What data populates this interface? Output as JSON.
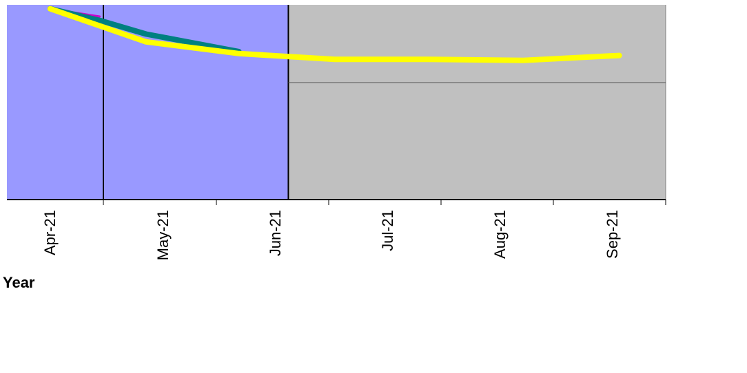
{
  "chart_data": {
    "type": "line",
    "xlabel": "Year",
    "ylabel": "",
    "categories": [
      "Apr-21",
      "May-21",
      "Jun-21",
      "Jul-21",
      "Aug-21",
      "Sep-21"
    ],
    "x_range": [
      "2021-03-01",
      "2021-09-30"
    ],
    "shaded_regions": [
      {
        "label": "",
        "start": "2021-03-01",
        "end": "2021-05-31",
        "color": "#9999ff"
      },
      {
        "label": "",
        "start": "2021-05-31",
        "end": "2021-09-30",
        "color": "#c0c0c0"
      }
    ],
    "gridlines_y": true,
    "series": [
      {
        "color": "#ffff00",
        "points": [
          {
            "x": "2021-03-15",
            "y": 0.98
          },
          {
            "x": "2021-04-15",
            "y": 0.81
          },
          {
            "x": "2021-05-15",
            "y": 0.75
          },
          {
            "x": "2021-06-15",
            "y": 0.72
          },
          {
            "x": "2021-07-15",
            "y": 0.72
          },
          {
            "x": "2021-08-15",
            "y": 0.715
          },
          {
            "x": "2021-09-15",
            "y": 0.74
          }
        ]
      },
      {
        "color": "#008080",
        "points": [
          {
            "x": "2021-03-15",
            "y": 0.98
          },
          {
            "x": "2021-03-31",
            "y": 0.92
          },
          {
            "x": "2021-04-15",
            "y": 0.85
          },
          {
            "x": "2021-05-15",
            "y": 0.76
          }
        ]
      },
      {
        "color": "#cc00cc",
        "points": [
          {
            "x": "2021-03-15",
            "y": 0.98
          },
          {
            "x": "2021-03-31",
            "y": 0.94
          }
        ]
      }
    ]
  }
}
